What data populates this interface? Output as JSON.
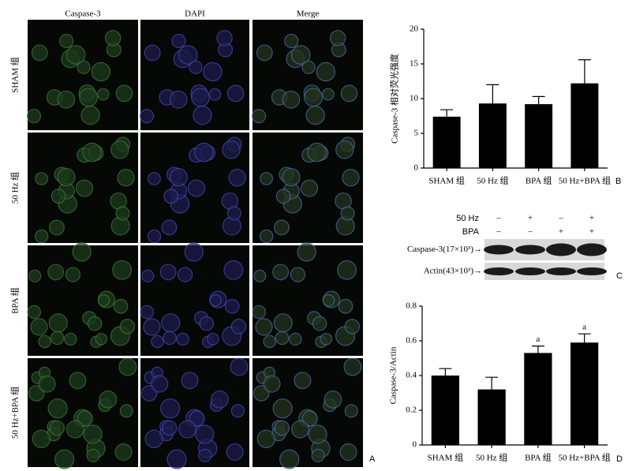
{
  "panel_a": {
    "columns": [
      "Caspase-3",
      "DAPI",
      "Merge"
    ],
    "rows": [
      "SHAM 组",
      "50 Hz 组",
      "BPA 组",
      "50 Hz+BPA 组"
    ],
    "label": "A"
  },
  "chart_data": [
    {
      "type": "bar",
      "panel": "B",
      "ylabel": "Caspase-3 相对荧光强度",
      "categories": [
        "SHAM 组",
        "50 Hz 组",
        "BPA 组",
        "50 Hz+BPA 组"
      ],
      "values": [
        7.4,
        9.3,
        9.2,
        12.2
      ],
      "errors": [
        1.0,
        2.7,
        1.1,
        3.4
      ],
      "color": "#000000",
      "ylim": [
        0,
        20
      ],
      "yticks": [
        0,
        5,
        10,
        15,
        20
      ]
    },
    {
      "type": "bar",
      "panel": "D",
      "ylabel": "Caspase-3/Actin",
      "categories": [
        "SHAM 组",
        "50 Hz 组",
        "BPA 组",
        "50 Hz+BPA 组"
      ],
      "values": [
        0.4,
        0.32,
        0.53,
        0.59
      ],
      "errors": [
        0.04,
        0.07,
        0.04,
        0.05
      ],
      "color": "#000000",
      "annotations": [
        {
          "index": 2,
          "text": "a"
        },
        {
          "index": 3,
          "text": "a"
        }
      ],
      "ylim": [
        0,
        0.8
      ],
      "yticks": [
        0,
        0.2,
        0.4,
        0.6,
        0.8
      ]
    }
  ],
  "panel_c": {
    "label": "C",
    "conditions": [
      {
        "label": "50 Hz",
        "signs": [
          "–",
          "+",
          "–",
          "+"
        ]
      },
      {
        "label": "BPA",
        "signs": [
          "–",
          "–",
          "+",
          "+"
        ]
      }
    ],
    "bands": [
      "Caspase-3(17×10³)→",
      "Actin(43×10³)→"
    ]
  }
}
